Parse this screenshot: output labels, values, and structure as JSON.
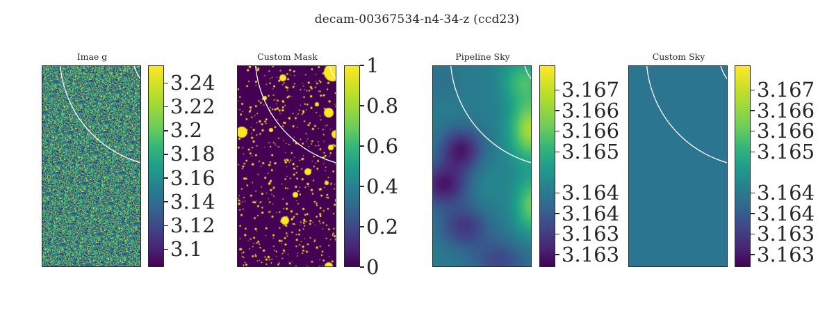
{
  "figure": {
    "title": "decam-00367534-n4-34-z (ccd23)"
  },
  "chart_data": [
    {
      "type": "heatmap",
      "title": "Imae g",
      "field": "noise-image",
      "colormap": "viridis",
      "colorbar_range": [
        3.085,
        3.255
      ],
      "colorbar_ticks": [
        "3.24",
        "3.22",
        "3.2",
        "3.18",
        "3.16",
        "3.14",
        "3.12",
        "3.1"
      ],
      "colorbar_tick_values": [
        3.24,
        3.22,
        3.2,
        3.18,
        3.16,
        3.14,
        3.12,
        3.1
      ]
    },
    {
      "type": "heatmap",
      "title": "Custom Mask",
      "field": "binary-mask",
      "colormap": "viridis",
      "colorbar_range": [
        0,
        1
      ],
      "colorbar_ticks": [
        "1",
        "0.8",
        "0.6",
        "0.4",
        "0.2",
        "0"
      ],
      "colorbar_tick_values": [
        1,
        0.8,
        0.6,
        0.4,
        0.2,
        0
      ]
    },
    {
      "type": "heatmap",
      "title": "Pipeline Sky",
      "field": "smooth-sky-model",
      "colormap": "viridis",
      "colorbar_range": [
        3.1627,
        3.1676
      ],
      "colorbar_ticks": [
        "3.167",
        "3.166",
        "3.166",
        "3.165",
        "3.164",
        "3.164",
        "3.163",
        "3.163"
      ],
      "colorbar_tick_values": [
        3.167,
        3.1665,
        3.166,
        3.1655,
        3.1645,
        3.164,
        3.1635,
        3.163
      ]
    },
    {
      "type": "heatmap",
      "title": "Custom Sky",
      "field": "constant-sky",
      "colormap": "viridis",
      "constant_value": 3.1645,
      "colorbar_range": [
        3.1627,
        3.1676
      ],
      "colorbar_ticks": [
        "3.167",
        "3.166",
        "3.166",
        "3.165",
        "3.164",
        "3.164",
        "3.163",
        "3.163"
      ],
      "colorbar_tick_values": [
        3.167,
        3.1665,
        3.166,
        3.1655,
        3.1645,
        3.164,
        3.1635,
        3.163
      ]
    }
  ],
  "colors": {
    "overlay_circle": "#ffffff",
    "mask_off": "#440154",
    "mask_on": "#fde725",
    "constant_sky": "#2c7590"
  }
}
